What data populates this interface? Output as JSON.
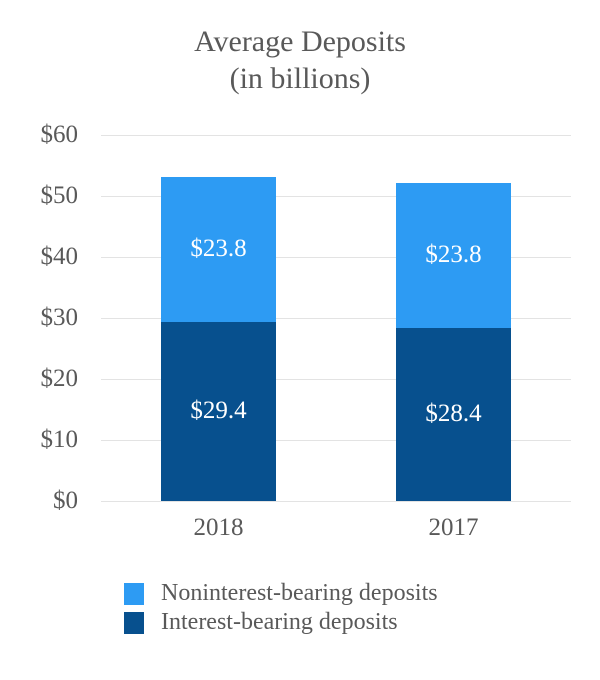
{
  "title": {
    "line1": "Average Deposits",
    "line2": "(in billions)"
  },
  "chart_data": {
    "type": "bar",
    "stacked": true,
    "title": "Average Deposits (in billions)",
    "categories": [
      "2018",
      "2017"
    ],
    "series": [
      {
        "name": "Interest-bearing deposits",
        "color": "#07508E",
        "values": [
          29.4,
          28.4
        ],
        "labels": [
          "$29.4",
          "$28.4"
        ]
      },
      {
        "name": "Noninterest-bearing deposits",
        "color": "#2D9BF3",
        "values": [
          23.8,
          23.8
        ],
        "labels": [
          "$23.8",
          "$23.8"
        ]
      }
    ],
    "y_axis": {
      "min": 0,
      "max": 60,
      "tick_values": [
        0,
        10,
        20,
        30,
        40,
        50,
        60
      ],
      "tick_labels": [
        "$0",
        "$10",
        "$20",
        "$30",
        "$40",
        "$50",
        "$60"
      ]
    },
    "grid": true,
    "legend_position": "bottom",
    "legend": [
      {
        "label": "Noninterest-bearing deposits",
        "color": "#2D9BF3"
      },
      {
        "label": "Interest-bearing deposits",
        "color": "#07508E"
      }
    ],
    "value_label_color": "#FFFFFF",
    "axis_text_color": "#595959",
    "gridline_color": "#E3E3E3"
  }
}
